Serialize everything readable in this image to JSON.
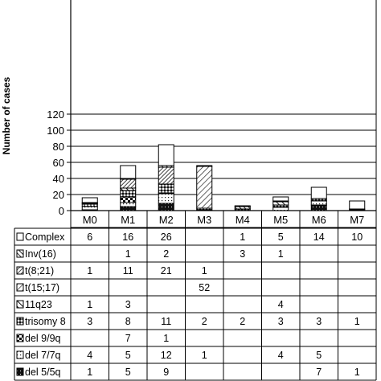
{
  "chart_data": {
    "type": "bar",
    "stacked": true,
    "title": "",
    "xlabel": "",
    "ylabel": "Number of cases",
    "ylim": [
      0,
      130
    ],
    "yticks": [
      0,
      20,
      40,
      60,
      80,
      100,
      120
    ],
    "grid": "horizontal",
    "legend_placement": "table-left",
    "categories": [
      "M0",
      "M1",
      "M2",
      "M3",
      "M4",
      "M5",
      "M6",
      "M7"
    ],
    "series": [
      {
        "name": "del 5/5q",
        "pattern": "dense-dots",
        "values": [
          1,
          5,
          9,
          null,
          null,
          null,
          7,
          1
        ]
      },
      {
        "name": "del 7/7q",
        "pattern": "light-dots",
        "values": [
          4,
          5,
          12,
          1,
          null,
          4,
          5,
          null
        ]
      },
      {
        "name": "del 9/9q",
        "pattern": "checker",
        "values": [
          null,
          7,
          1,
          null,
          null,
          null,
          null,
          null
        ]
      },
      {
        "name": "trisomy 8",
        "pattern": "diag-dots",
        "values": [
          3,
          8,
          11,
          2,
          2,
          3,
          3,
          1
        ]
      },
      {
        "name": "11q23",
        "pattern": "back-hatch",
        "values": [
          1,
          3,
          null,
          null,
          null,
          4,
          null,
          null
        ]
      },
      {
        "name": "t(15;17)",
        "pattern": "fwd-hatch",
        "values": [
          null,
          null,
          null,
          52,
          null,
          null,
          null,
          null
        ]
      },
      {
        "name": "t(8;21)",
        "pattern": "dense-fwd-hatch",
        "values": [
          1,
          11,
          21,
          1,
          null,
          null,
          null,
          null
        ]
      },
      {
        "name": "inv(16)",
        "pattern": "backslash",
        "values": [
          null,
          1,
          2,
          null,
          3,
          1,
          null,
          null
        ]
      },
      {
        "name": "Complex",
        "pattern": "white",
        "values": [
          6,
          16,
          26,
          null,
          1,
          5,
          14,
          10
        ]
      }
    ],
    "table_rows_top_to_bottom": [
      "Complex",
      "inv(16)",
      "t(8;21)",
      "t(15;17)",
      "11q23",
      "trisomy 8",
      "del 9/9q",
      "del 7/7q",
      "del 5/5q"
    ],
    "row_labels": {
      "Complex": "Complex",
      "inv(16)": "Inv(16)",
      "t(8;21)": "t(8;21)",
      "t(15;17)": "t(15;17)",
      "11q23": "11q23",
      "trisomy 8": "trisomy 8",
      "del 9/9q": "del 9/9q",
      "del 7/7q": "del 7/7q",
      "del 5/5q": "del 5/5q"
    }
  },
  "colors": {
    "ink": "#000000",
    "background": "#ffffff",
    "hatch": "#222222"
  }
}
